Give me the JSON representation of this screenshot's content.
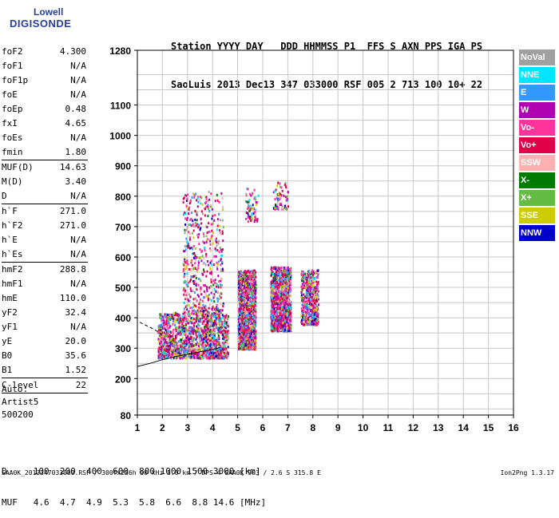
{
  "logo": {
    "line1": "Lowell",
    "line2": "DIGISONDE"
  },
  "header": {
    "labels": "Station YYYY DAY   DDD HHMMSS P1  FFS S AXN PPS IGA PS",
    "values": "SaoLuis 2013 Dec13 347 033000 RSF 005 2 713 100 10+ 22"
  },
  "params_groups": [
    [
      {
        "label": "foF2",
        "value": "4.300"
      },
      {
        "label": "foF1",
        "value": "N/A"
      },
      {
        "label": "foF1p",
        "value": "N/A"
      },
      {
        "label": "foE",
        "value": "N/A"
      },
      {
        "label": "foEp",
        "value": "0.48"
      },
      {
        "label": "fxI",
        "value": "4.65"
      },
      {
        "label": "foEs",
        "value": "N/A"
      },
      {
        "label": "fmin",
        "value": "1.80"
      }
    ],
    [
      {
        "label": "MUF(D)",
        "value": "14.63"
      },
      {
        "label": "M(D)",
        "value": "3.40"
      },
      {
        "label": "D",
        "value": "N/A"
      }
    ],
    [
      {
        "label": "h`F",
        "value": "271.0"
      },
      {
        "label": "h`F2",
        "value": "271.0"
      },
      {
        "label": "h`E",
        "value": "N/A"
      },
      {
        "label": "h`Es",
        "value": "N/A"
      }
    ],
    [
      {
        "label": "hmF2",
        "value": "288.8"
      },
      {
        "label": "hmF1",
        "value": "N/A"
      },
      {
        "label": "hmE",
        "value": "110.0"
      },
      {
        "label": "yF2",
        "value": "32.4"
      },
      {
        "label": "yF1",
        "value": "N/A"
      },
      {
        "label": "yE",
        "value": "20.0"
      },
      {
        "label": "B0",
        "value": "35.6"
      },
      {
        "label": "B1",
        "value": "1.52"
      }
    ],
    [
      {
        "label": "C-level",
        "value": "22"
      }
    ]
  ],
  "auto": {
    "line1": "Auto:",
    "line2": "Artist5",
    "line3": "500200"
  },
  "bottom_table": {
    "line1": "D     100  200  400  600  800 1000 1500 3000 [km]",
    "line2": "MUF   4.6  4.7  4.9  5.3  5.8  6.6  8.8 14.6 [MHz]"
  },
  "footer": {
    "left": "SAA0K_2013347033000.RSF / 300fx256h 50 kHz 5.0 km / DPS-4 SAA0K 903 / 2.6 S 315.8 E",
    "right": "Ion2Png 1.3.17"
  },
  "legend": [
    {
      "label": "NoVal",
      "color": "#a0a0a0"
    },
    {
      "label": "NNE",
      "color": "#00e5ff"
    },
    {
      "label": "E",
      "color": "#3399ff"
    },
    {
      "label": "W",
      "color": "#b000b0"
    },
    {
      "label": "Vo-",
      "color": "#ff3399"
    },
    {
      "label": "Vo+",
      "color": "#e0004a"
    },
    {
      "label": "SSW",
      "color": "#ffb0b0"
    },
    {
      "label": "X-",
      "color": "#007a00"
    },
    {
      "label": "X+",
      "color": "#66bb44"
    },
    {
      "label": "SSE",
      "color": "#cccc00"
    },
    {
      "label": "NNW",
      "color": "#0000cc"
    }
  ],
  "chart_data": {
    "type": "scatter",
    "title": "",
    "xlabel": "",
    "ylabel": "",
    "xlim": [
      1,
      16
    ],
    "ylim": [
      80,
      1280
    ],
    "xticks": [
      1,
      2,
      3,
      4,
      5,
      6,
      7,
      8,
      9,
      10,
      11,
      12,
      13,
      14,
      15,
      16
    ],
    "yticks": [
      80,
      200,
      300,
      400,
      500,
      600,
      700,
      800,
      900,
      1000,
      1100,
      1280
    ],
    "grid": true,
    "legend_placement": "right",
    "clusters": [
      {
        "x": [
          1.8,
          4.6
        ],
        "y": [
          270,
          420
        ],
        "density": "high"
      },
      {
        "x": [
          2.8,
          4.4
        ],
        "y": [
          420,
          820
        ],
        "density": "medium"
      },
      {
        "x": [
          5.0,
          5.7
        ],
        "y": [
          300,
          560
        ],
        "density": "high"
      },
      {
        "x": [
          5.3,
          5.8
        ],
        "y": [
          720,
          830
        ],
        "density": "low"
      },
      {
        "x": [
          6.3,
          7.1
        ],
        "y": [
          360,
          570
        ],
        "density": "high"
      },
      {
        "x": [
          6.4,
          7.0
        ],
        "y": [
          760,
          850
        ],
        "density": "low"
      },
      {
        "x": [
          7.5,
          8.2
        ],
        "y": [
          380,
          560
        ],
        "density": "medium"
      }
    ],
    "trace_curve": {
      "x": [
        1.0,
        1.5,
        2.0,
        2.5,
        3.0,
        3.5,
        4.0,
        4.3
      ],
      "y": [
        240,
        250,
        262,
        272,
        280,
        288,
        296,
        302
      ]
    },
    "trace_dashed": {
      "x": [
        1.1,
        1.6,
        2.0
      ],
      "y": [
        385,
        365,
        345
      ]
    }
  }
}
